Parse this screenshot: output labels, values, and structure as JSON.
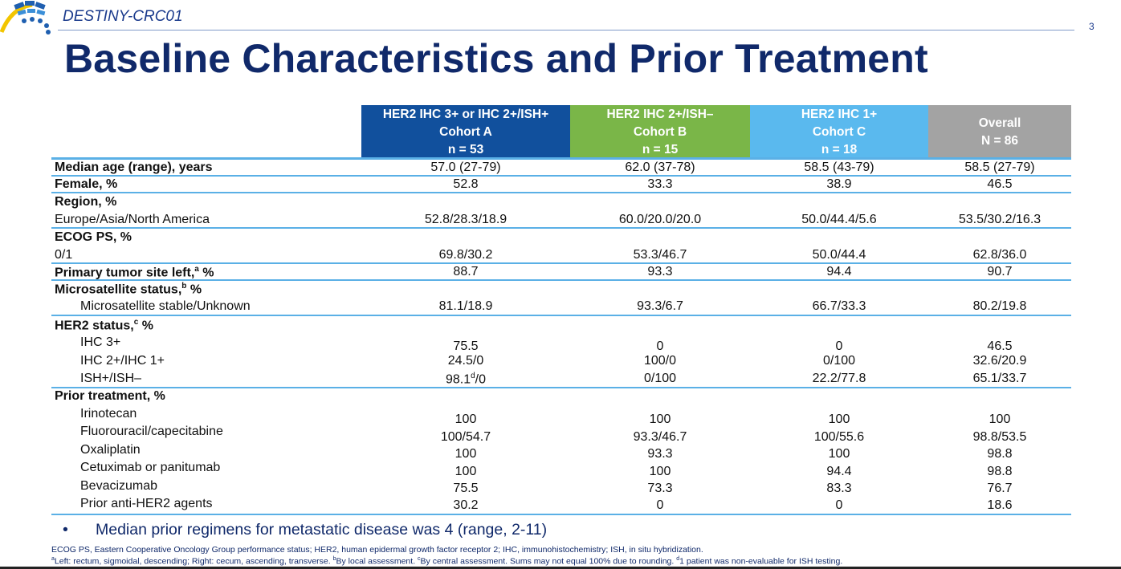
{
  "header": {
    "study_name": "DESTINY-CRC01",
    "page_number": "3"
  },
  "title": "Baseline Characteristics and Prior Treatment",
  "columns": [
    {
      "line1": "HER2 IHC 3+ or IHC 2+/ISH+",
      "line2": "Cohort A",
      "line3": "n = 53",
      "color": "#11509d"
    },
    {
      "line1": "HER2 IHC 2+/ISH–",
      "line2": "Cohort B",
      "line3": "n = 15",
      "color": "#7ab648"
    },
    {
      "line1": "HER2 IHC 1+",
      "line2": "Cohort C",
      "line3": "n = 18",
      "color": "#5ab9ee"
    },
    {
      "line1": "Overall",
      "line2": "N = 86",
      "color": "#a3a3a3"
    }
  ],
  "rows": {
    "median_age": {
      "label": "Median age (range), years",
      "values": [
        "57.0 (27-79)",
        "62.0 (37-78)",
        "58.5 (43-79)",
        "58.5 (27-79)"
      ]
    },
    "female": {
      "label": "Female, %",
      "values": [
        "52.8",
        "33.3",
        "38.9",
        "46.5"
      ]
    },
    "region": {
      "label": "Region, %",
      "sub_label": "Europe/Asia/North America",
      "values": [
        "52.8/28.3/18.9",
        "60.0/20.0/20.0",
        "50.0/44.4/5.6",
        "53.5/30.2/16.3"
      ]
    },
    "ecog": {
      "label": "ECOG PS, %",
      "sub_label": "0/1",
      "values": [
        "69.8/30.2",
        "53.3/46.7",
        "50.0/44.4",
        "62.8/36.0"
      ]
    },
    "primary_tumor": {
      "label": "Primary tumor site left,",
      "sup": "a",
      "suffix": " %",
      "values": [
        "88.7",
        "93.3",
        "94.4",
        "90.7"
      ]
    },
    "msi": {
      "label": "Microsatellite status,",
      "sup": "b",
      "suffix": " %",
      "sub_label": "Microsatellite stable/Unknown",
      "values": [
        "81.1/18.9",
        "93.3/6.7",
        "66.7/33.3",
        "80.2/19.8"
      ]
    },
    "her2": {
      "label": "HER2 status,",
      "sup": "c",
      "suffix": " %",
      "items": [
        {
          "label": "IHC 3+",
          "values": [
            "75.5",
            "0",
            "0",
            "46.5"
          ]
        },
        {
          "label": "IHC 2+/IHC 1+",
          "values": [
            "24.5/0",
            "100/0",
            "0/100",
            "32.6/20.9"
          ]
        },
        {
          "label": "ISH+/ISH–",
          "values": [
            "98.1",
            "0/100",
            "22.2/77.8",
            "65.1/33.7"
          ],
          "a_sup": "d",
          "a_suffix": "/0"
        }
      ]
    },
    "prior": {
      "label": "Prior treatment, %",
      "items": [
        {
          "label": "Irinotecan"
        },
        {
          "label": "Fluorouracil/capecitabine"
        },
        {
          "label": "Oxaliplatin"
        },
        {
          "label": "Cetuximab or panitumab"
        },
        {
          "label": "Bevacizumab"
        },
        {
          "label": "Prior anti-HER2 agents"
        }
      ],
      "value_rows": [
        [
          "100",
          "100",
          "100",
          "100"
        ],
        [
          "100/54.7",
          "93.3/46.7",
          "100/55.6",
          "98.8/53.5"
        ],
        [
          "100",
          "93.3",
          "100",
          "98.8"
        ],
        [
          "100",
          "100",
          "94.4",
          "98.8"
        ],
        [
          "75.5",
          "73.3",
          "83.3",
          "76.7"
        ],
        [
          "30.2",
          "0",
          "0",
          "18.6"
        ]
      ]
    }
  },
  "bullet": {
    "marker": "•",
    "text": "Median prior regimens for metastatic disease was 4 (range, 2-11)"
  },
  "footnotes": {
    "line1": "ECOG PS, Eastern Cooperative Oncology Group performance status; HER2, human epidermal growth factor receptor 2; IHC, immunohistochemistry;  ISH, in situ hybridization.",
    "line2_parts": [
      {
        "sup": "a",
        "text": "Left: rectum, sigmoidal, descending; Right: cecum, ascending, transverse. "
      },
      {
        "sup": "b",
        "text": "By local assessment. "
      },
      {
        "sup": "c",
        "text": "By central assessment. Sums may not equal 100% due to rounding. "
      },
      {
        "sup": "d",
        "text": "1 patient was non-evaluable  for ISH testing."
      }
    ]
  },
  "colors": {
    "title": "#10296a",
    "separator": "#5ab0e6"
  },
  "icons": {
    "logo": "conference-logo-arc"
  }
}
